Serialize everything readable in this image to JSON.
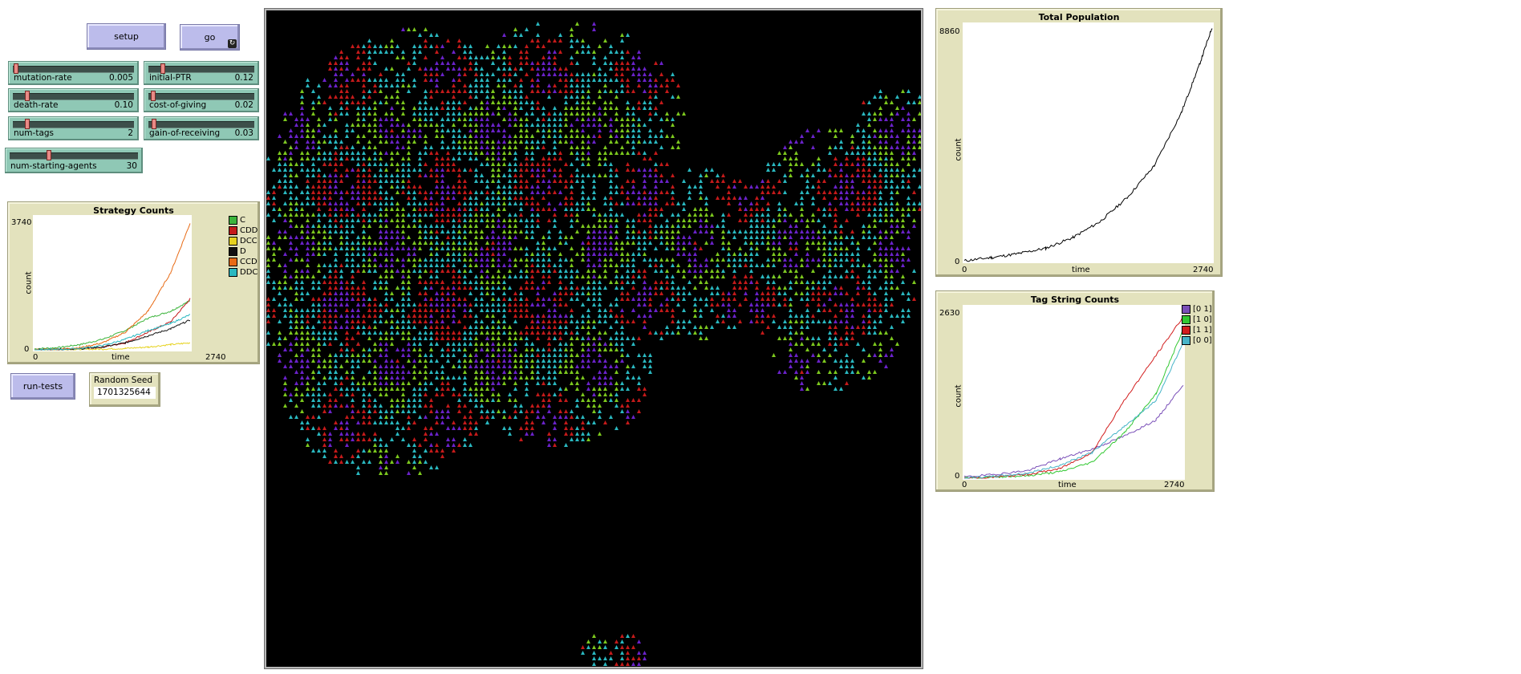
{
  "buttons": {
    "setup": "setup",
    "go": "go",
    "go_forever_icon": "forever-arrows-icon",
    "run_tests": "run-tests"
  },
  "sliders": [
    {
      "id": "mutation-rate",
      "label": "mutation-rate",
      "value": "0.005",
      "fraction": 0.01
    },
    {
      "id": "initial-PTR",
      "label": "initial-PTR",
      "value": "0.12",
      "fraction": 0.12
    },
    {
      "id": "death-rate",
      "label": "death-rate",
      "value": "0.10",
      "fraction": 0.1
    },
    {
      "id": "cost-of-giving",
      "label": "cost-of-giving",
      "value": "0.02",
      "fraction": 0.02
    },
    {
      "id": "num-tags",
      "label": "num-tags",
      "value": "2",
      "fraction": 0.1
    },
    {
      "id": "gain-of-receiving",
      "label": "gain-of-receiving",
      "value": "0.03",
      "fraction": 0.03
    },
    {
      "id": "num-starting-agents",
      "label": "num-starting-agents",
      "value": "30",
      "fraction": 0.3
    }
  ],
  "random_seed": {
    "label": "Random Seed",
    "value": "1701325644"
  },
  "colors": {
    "button": "#bcbceb",
    "slider": "#8fc8b5",
    "plot_bg": "#e3e2bd",
    "world": "#000000",
    "turtle_purple": "#6a22c9",
    "turtle_red": "#c41a1a",
    "turtle_cyan": "#2ab8c0",
    "turtle_green": "#7cc81e"
  },
  "chart_data": [
    {
      "type": "line",
      "title": "Strategy Counts",
      "xlabel": "time",
      "ylabel": "count",
      "xlim": [
        0,
        2740
      ],
      "ylim": [
        0,
        3740
      ],
      "x_ticks": [
        "0",
        "2740"
      ],
      "y_ticks": [
        "0",
        "3740"
      ],
      "legend_position": "right",
      "x": [
        0,
        400,
        800,
        1200,
        1600,
        2000,
        2400,
        2740
      ],
      "series": [
        {
          "name": "C",
          "color": "#3cb43c",
          "values": [
            30,
            60,
            150,
            300,
            550,
            900,
            1100,
            1400
          ]
        },
        {
          "name": "CDD",
          "color": "#c41a1a",
          "values": [
            0,
            10,
            30,
            80,
            200,
            500,
            800,
            1450
          ]
        },
        {
          "name": "DCC",
          "color": "#e6d21e",
          "values": [
            0,
            5,
            10,
            20,
            40,
            80,
            150,
            200
          ]
        },
        {
          "name": "D",
          "color": "#111111",
          "values": [
            0,
            10,
            30,
            80,
            200,
            400,
            600,
            850
          ]
        },
        {
          "name": "CCD",
          "color": "#e86a14",
          "values": [
            0,
            20,
            60,
            200,
            500,
            1100,
            2200,
            3600
          ]
        },
        {
          "name": "DDC",
          "color": "#2ab8c0",
          "values": [
            0,
            10,
            40,
            120,
            300,
            550,
            750,
            1000
          ]
        }
      ]
    },
    {
      "type": "line",
      "title": "Total Population",
      "xlabel": "time",
      "ylabel": "count",
      "xlim": [
        0,
        2740
      ],
      "ylim": [
        0,
        8860
      ],
      "x_ticks": [
        "0",
        "2740"
      ],
      "y_ticks": [
        "0",
        "8860"
      ],
      "x": [
        0,
        300,
        600,
        900,
        1200,
        1500,
        1800,
        2100,
        2400,
        2600,
        2740
      ],
      "series": [
        {
          "color": "#000000",
          "values": [
            30,
            150,
            300,
            500,
            900,
            1500,
            2400,
            3600,
            5600,
            7400,
            8800
          ]
        }
      ]
    },
    {
      "type": "line",
      "title": "Tag String Counts",
      "xlabel": "time",
      "ylabel": "count",
      "xlim": [
        0,
        2740
      ],
      "ylim": [
        0,
        2630
      ],
      "x_ticks": [
        "0",
        "2740"
      ],
      "y_ticks": [
        "0",
        "2630"
      ],
      "legend_position": "right",
      "x": [
        0,
        400,
        800,
        1200,
        1600,
        2000,
        2400,
        2740
      ],
      "series": [
        {
          "name": "[0 1]",
          "color": "#7a4fb8",
          "values": [
            20,
            60,
            120,
            300,
            450,
            650,
            900,
            1450
          ]
        },
        {
          "name": "[1 0]",
          "color": "#32c832",
          "values": [
            0,
            20,
            40,
            100,
            250,
            700,
            1300,
            2300
          ]
        },
        {
          "name": "[1 1]",
          "color": "#d21e1e",
          "values": [
            0,
            20,
            60,
            150,
            400,
            1200,
            1900,
            2500
          ]
        },
        {
          "name": "[0 0]",
          "color": "#46b4c8",
          "values": [
            0,
            30,
            80,
            200,
            400,
            800,
            1200,
            2100
          ]
        }
      ]
    }
  ]
}
